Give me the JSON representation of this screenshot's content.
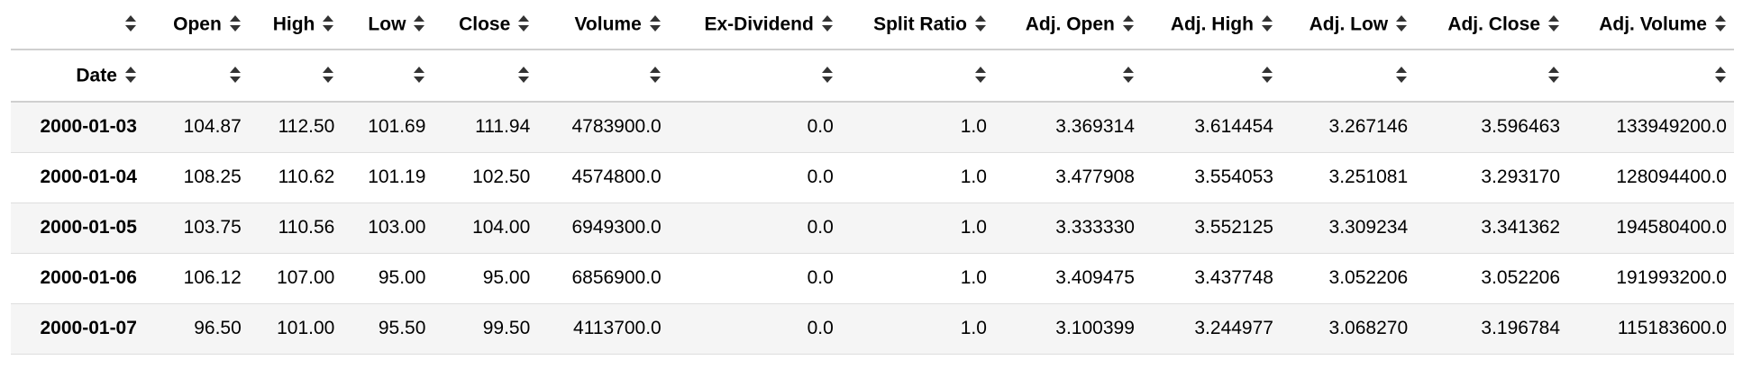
{
  "table": {
    "columns": [
      "Open",
      "High",
      "Low",
      "Close",
      "Volume",
      "Ex-Dividend",
      "Split Ratio",
      "Adj. Open",
      "Adj. High",
      "Adj. Low",
      "Adj. Close",
      "Adj. Volume"
    ],
    "index_name": "Date",
    "rows": [
      {
        "date": "2000-01-03",
        "values": [
          "104.87",
          "112.50",
          "101.69",
          "111.94",
          "4783900.0",
          "0.0",
          "1.0",
          "3.369314",
          "3.614454",
          "3.267146",
          "3.596463",
          "133949200.0"
        ]
      },
      {
        "date": "2000-01-04",
        "values": [
          "108.25",
          "110.62",
          "101.19",
          "102.50",
          "4574800.0",
          "0.0",
          "1.0",
          "3.477908",
          "3.554053",
          "3.251081",
          "3.293170",
          "128094400.0"
        ]
      },
      {
        "date": "2000-01-05",
        "values": [
          "103.75",
          "110.56",
          "103.00",
          "104.00",
          "6949300.0",
          "0.0",
          "1.0",
          "3.333330",
          "3.552125",
          "3.309234",
          "3.341362",
          "194580400.0"
        ]
      },
      {
        "date": "2000-01-06",
        "values": [
          "106.12",
          "107.00",
          "95.00",
          "95.00",
          "6856900.0",
          "0.0",
          "1.0",
          "3.409475",
          "3.437748",
          "3.052206",
          "3.052206",
          "191993200.0"
        ]
      },
      {
        "date": "2000-01-07",
        "values": [
          "96.50",
          "101.00",
          "95.50",
          "99.50",
          "4113700.0",
          "0.0",
          "1.0",
          "3.100399",
          "3.244977",
          "3.068270",
          "3.196784",
          "115183600.0"
        ]
      }
    ]
  },
  "icons": {
    "sort": "sort-both-icon"
  },
  "colors": {
    "stripe": "#f5f5f5",
    "rule": "#cfcfcf"
  }
}
